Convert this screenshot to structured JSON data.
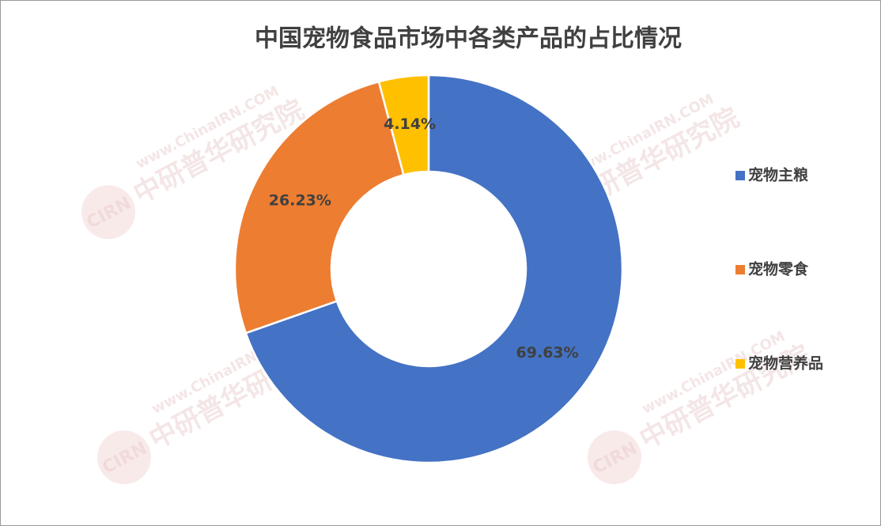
{
  "chart_data": {
    "type": "donut",
    "title": "中国宠物食品市场中各类产品的占比情况",
    "categories": [
      "宠物主粮",
      "宠物零食",
      "宠物营养品"
    ],
    "values": [
      69.63,
      26.23,
      4.14
    ],
    "value_labels": [
      "69.63%",
      "26.23%",
      "4.14%"
    ],
    "colors": [
      "#4472c4",
      "#ed7d31",
      "#ffc000"
    ],
    "legend": "right",
    "watermark": {
      "logo": "CIRN",
      "name": "中研普华研究院",
      "url": "www.ChinaIRN.COM"
    }
  }
}
